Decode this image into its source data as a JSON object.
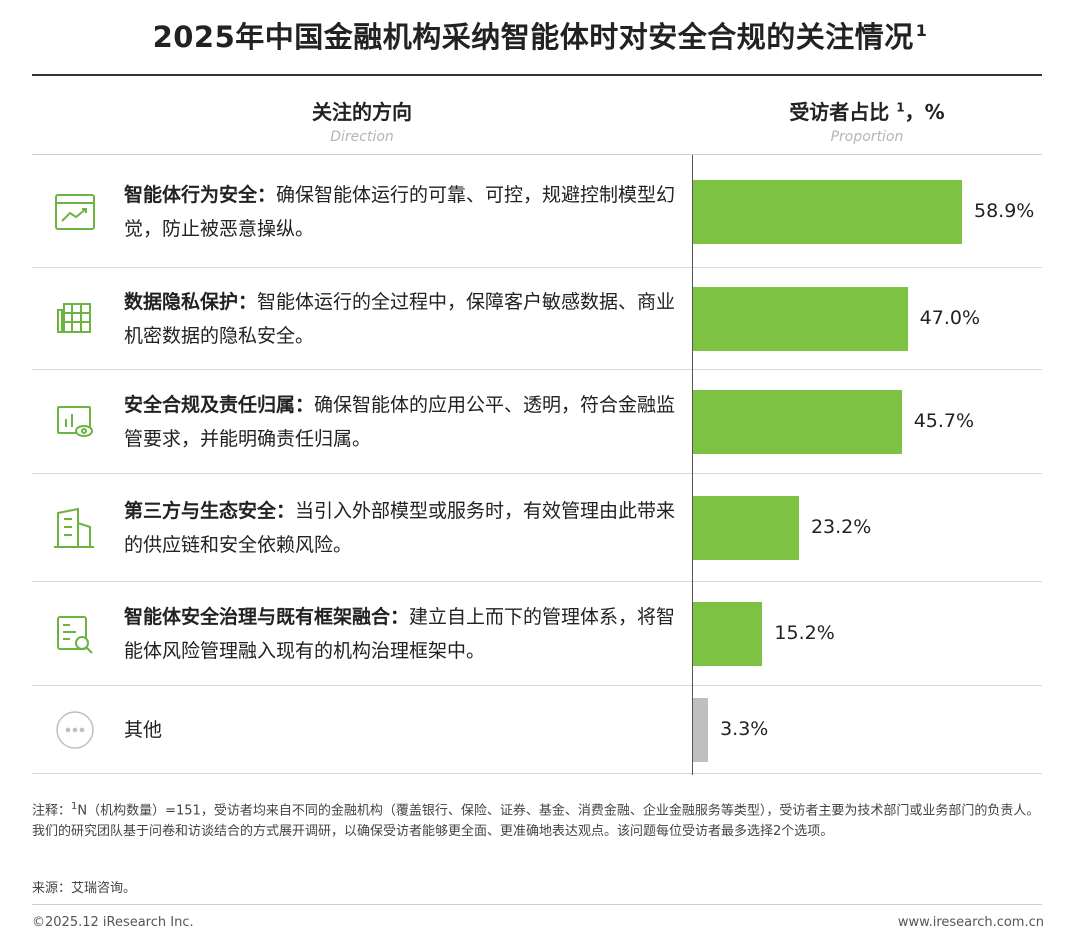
{
  "title": "2025年中国金融机构采纳智能体时对安全合规的关注情况",
  "title_sup": "1",
  "header": {
    "left_cn": "关注的方向",
    "left_en": "Direction",
    "right_cn_prefix": "受访者占比",
    "right_sup": "1",
    "right_cn_suffix": "，%",
    "right_en": "Proportion"
  },
  "chart_data": {
    "type": "bar",
    "orientation": "horizontal",
    "title": "2025年中国金融机构采纳智能体时对安全合规的关注情况",
    "unit": "%",
    "xlim": [
      0,
      80
    ],
    "categories": [
      "智能体行为安全",
      "数据隐私保护",
      "安全合规及责任归属",
      "第三方与生态安全",
      "智能体安全治理与既有框架融合",
      "其他"
    ],
    "values": [
      58.9,
      47.0,
      45.7,
      23.2,
      15.2,
      3.3
    ],
    "labels": [
      "58.9%",
      "47.0%",
      "45.7%",
      "23.2%",
      "15.2%",
      "3.3%"
    ],
    "bar_colors": [
      "#7dc242",
      "#7dc242",
      "#7dc242",
      "#7dc242",
      "#7dc242",
      "#bfbfbf"
    ]
  },
  "rows": [
    {
      "bold": "智能体行为安全：",
      "text": "确保智能体运行的可靠、可控，规避控制模型幻觉，防止被恶意操纵。",
      "icon": "chart-window-icon"
    },
    {
      "bold": "数据隐私保护：",
      "text": "智能体运行的全过程中，保障客户敏感数据、商业机密数据的隐私安全。",
      "icon": "grid-data-icon"
    },
    {
      "bold": "安全合规及责任归属：",
      "text": "确保智能体的应用公平、透明，符合金融监管要求，并能明确责任归属。",
      "icon": "monitor-eye-icon"
    },
    {
      "bold": "第三方与生态安全：",
      "text": "当引入外部模型或服务时，有效管理由此带来的供应链和安全依赖风险。",
      "icon": "building-icon"
    },
    {
      "bold": "智能体安全治理与既有框架融合：",
      "text": "建立自上而下的管理体系，将智能体风险管理融入现有的机构治理框架中。",
      "icon": "document-search-icon"
    },
    {
      "bold": "",
      "text": "其他",
      "icon": "more-dots-icon"
    }
  ],
  "colors": {
    "green": "#7dc242",
    "gray": "#bfbfbf",
    "icon_green": "#6cb33f"
  },
  "note_prefix": "注释：",
  "note_sup": "1",
  "note": "N（机构数量）=151，受访者均来自不同的金融机构（覆盖银行、保险、证券、基金、消费金融、企业金融服务等类型），受访者主要为技术部门或业务部门的负责人。我们的研究团队基于问卷和访谈结合的方式展开调研，以确保受访者能够更全面、更准确地表达观点。该问题每位受访者最多选择2个选项。",
  "source": "来源：艾瑞咨询。",
  "footer_left": "©2025.12 iResearch Inc.",
  "footer_right": "www.iresearch.com.cn"
}
